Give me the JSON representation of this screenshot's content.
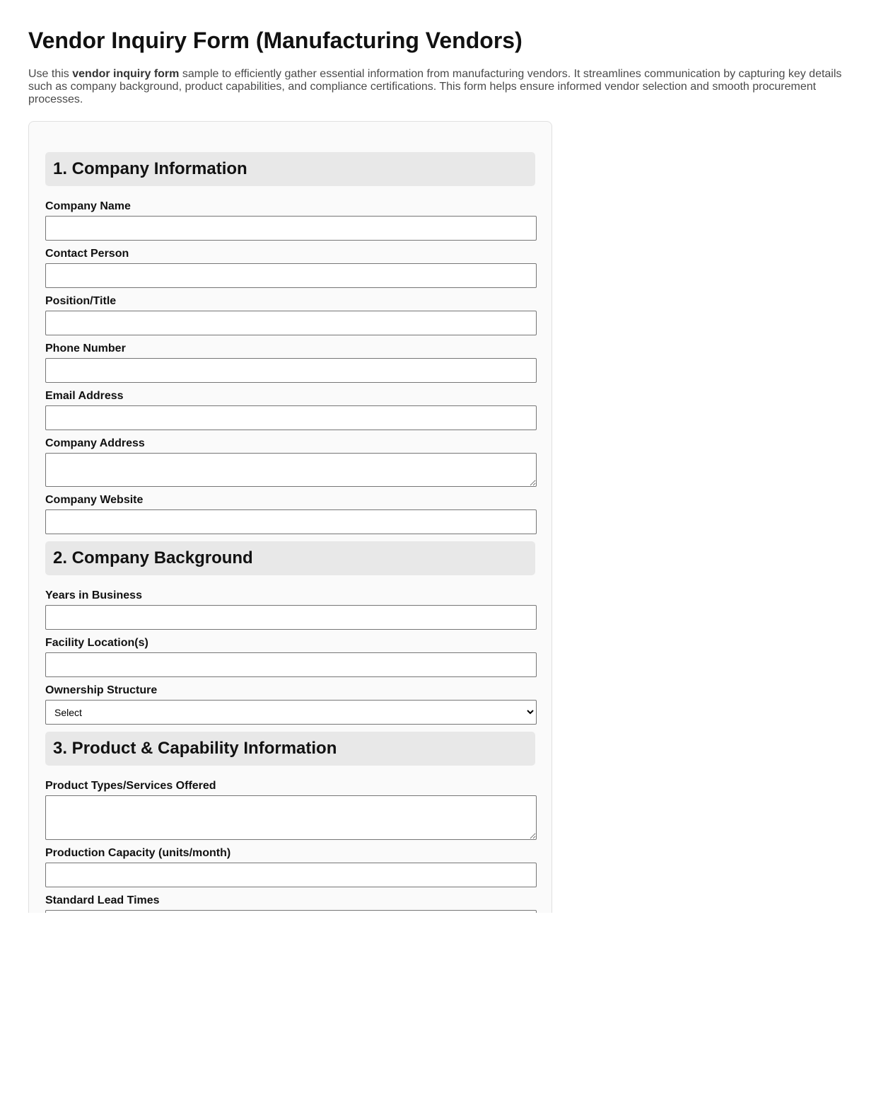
{
  "title": "Vendor Inquiry Form (Manufacturing Vendors)",
  "description": {
    "before": "Use this ",
    "bold": "vendor inquiry form",
    "after": " sample to efficiently gather essential information from manufacturing vendors. It streamlines communication by capturing key details such as company background, product capabilities, and compliance certifications. This form helps ensure informed vendor selection and smooth procurement processes."
  },
  "sections": [
    {
      "title": "1. Company Information",
      "fields": [
        "Company Name",
        "Contact Person",
        "Position/Title",
        "Phone Number",
        "Email Address",
        "Company Address",
        "Company Website"
      ]
    },
    {
      "title": "2. Company Background",
      "fields": [
        "Years in Business",
        "Facility Location(s)",
        "Ownership Structure"
      ],
      "ownership_selected": "Select"
    },
    {
      "title": "3. Product & Capability Information",
      "fields": [
        "Product Types/Services Offered",
        "Production Capacity (units/month)",
        "Standard Lead Times"
      ]
    }
  ]
}
